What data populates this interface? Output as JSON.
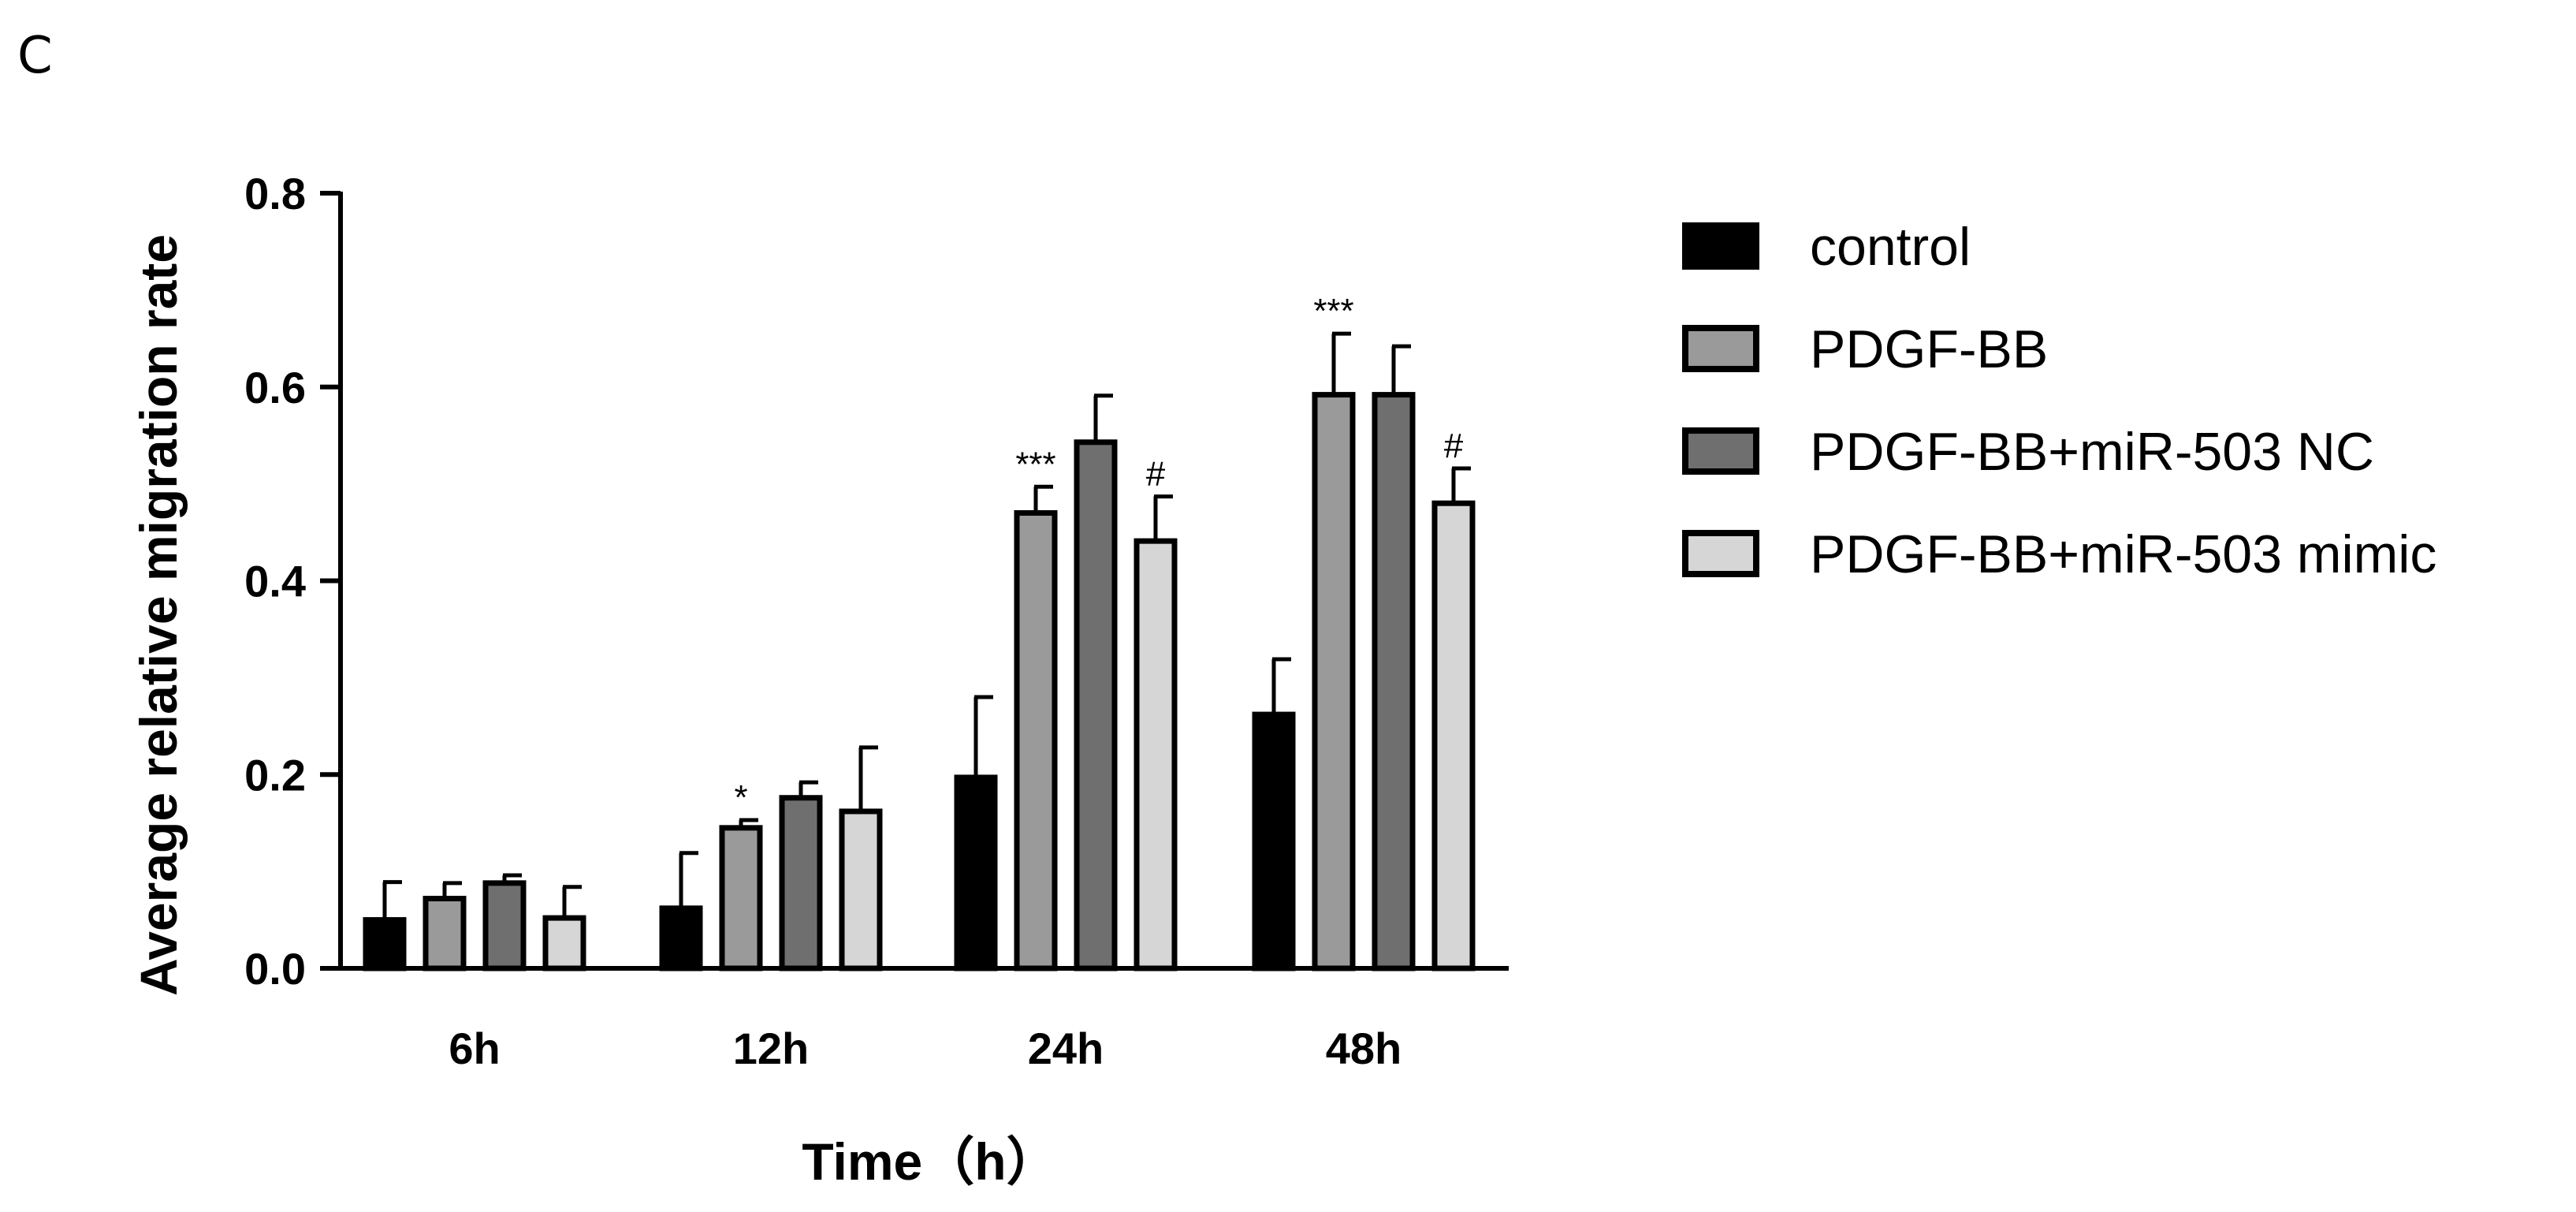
{
  "panel_label": "C",
  "chart_data": {
    "type": "bar",
    "title": "",
    "xlabel": "Time（h）",
    "ylabel": "Average relative migration rate",
    "ylim": [
      0,
      0.8
    ],
    "yticks": [
      "0.0",
      "0.2",
      "0.4",
      "0.6",
      "0.8"
    ],
    "ytick_values": [
      0,
      0.2,
      0.4,
      0.6,
      0.8
    ],
    "categories": [
      "6h",
      "12h",
      "24h",
      "48h"
    ],
    "legend_position": "right",
    "series": [
      {
        "name": "control",
        "color": "#000000",
        "values": [
          0.05,
          0.062,
          0.197,
          0.262
        ],
        "errors": [
          0.039,
          0.057,
          0.083,
          0.057
        ],
        "marks": [
          "",
          "",
          "",
          ""
        ]
      },
      {
        "name": "PDGF-BB",
        "color": "#9a9a9a",
        "values": [
          0.072,
          0.145,
          0.47,
          0.592
        ],
        "errors": [
          0.016,
          0.008,
          0.027,
          0.063
        ],
        "marks": [
          "",
          "*",
          "***",
          "***"
        ]
      },
      {
        "name": "PDGF-BB+miR-503 NC",
        "color": "#6f6f6f",
        "values": [
          0.088,
          0.176,
          0.543,
          0.592
        ],
        "errors": [
          0.008,
          0.016,
          0.048,
          0.05
        ],
        "marks": [
          "",
          "",
          "",
          ""
        ]
      },
      {
        "name": "PDGF-BB+miR-503 mimic",
        "color": "#d6d6d6",
        "values": [
          0.052,
          0.162,
          0.441,
          0.48
        ],
        "errors": [
          0.032,
          0.066,
          0.046,
          0.036
        ],
        "marks": [
          "",
          "",
          "#",
          "#"
        ]
      }
    ]
  }
}
